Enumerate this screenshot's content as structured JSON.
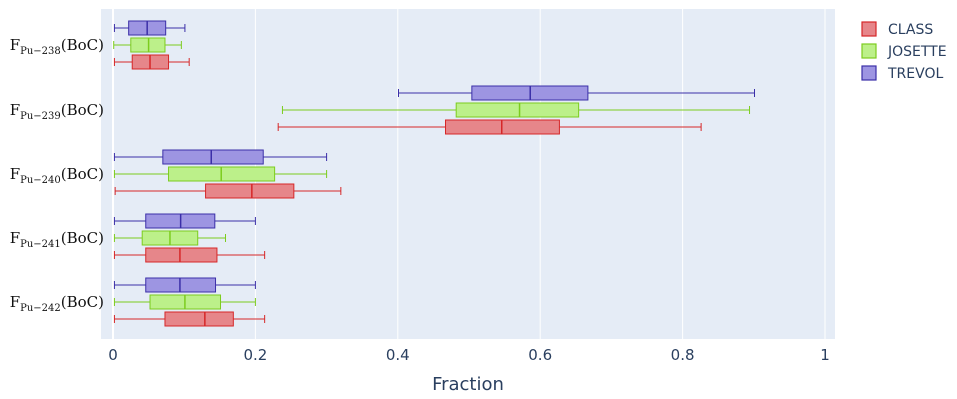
{
  "chart_data": {
    "type": "box",
    "orientation": "horizontal",
    "xlabel": "Fraction",
    "xlim": [
      0,
      1
    ],
    "xticks": [
      0,
      0.2,
      0.4,
      0.6,
      0.8,
      1
    ],
    "xtick_labels": [
      "0",
      "0.2",
      "0.4",
      "0.6",
      "0.8",
      "1"
    ],
    "grid": "vertical",
    "legend_position": "top-right",
    "categories": [
      {
        "base": "F",
        "sub": "Pu−238",
        "suffix": "(BoC)"
      },
      {
        "base": "F",
        "sub": "Pu−239",
        "suffix": "(BoC)"
      },
      {
        "base": "F",
        "sub": "Pu−240",
        "suffix": "(BoC)"
      },
      {
        "base": "F",
        "sub": "Pu−241",
        "suffix": "(BoC)"
      },
      {
        "base": "F",
        "sub": "Pu−242",
        "suffix": "(BoC)"
      }
    ],
    "series": [
      {
        "name": "CLASS",
        "color": "#d62728",
        "fill": "#e6868a",
        "boxes": [
          {
            "min": 0.002,
            "q1": 0.027,
            "median": 0.052,
            "q3": 0.078,
            "max": 0.107
          },
          {
            "min": 0.232,
            "q1": 0.467,
            "median": 0.546,
            "q3": 0.627,
            "max": 0.826
          },
          {
            "min": 0.003,
            "q1": 0.13,
            "median": 0.195,
            "q3": 0.254,
            "max": 0.32
          },
          {
            "min": 0.002,
            "q1": 0.046,
            "median": 0.094,
            "q3": 0.146,
            "max": 0.213
          },
          {
            "min": 0.002,
            "q1": 0.073,
            "median": 0.129,
            "q3": 0.169,
            "max": 0.213
          }
        ]
      },
      {
        "name": "JOSETTE",
        "color": "#7ccc1e",
        "fill": "#bcf08a",
        "boxes": [
          {
            "min": 0.001,
            "q1": 0.025,
            "median": 0.05,
            "q3": 0.073,
            "max": 0.096
          },
          {
            "min": 0.238,
            "q1": 0.482,
            "median": 0.571,
            "q3": 0.654,
            "max": 0.894
          },
          {
            "min": 0.002,
            "q1": 0.078,
            "median": 0.152,
            "q3": 0.227,
            "max": 0.3
          },
          {
            "min": 0.002,
            "q1": 0.041,
            "median": 0.08,
            "q3": 0.119,
            "max": 0.158
          },
          {
            "min": 0.002,
            "q1": 0.052,
            "median": 0.101,
            "q3": 0.151,
            "max": 0.2
          }
        ]
      },
      {
        "name": "TREVOL",
        "color": "#3b2fa8",
        "fill": "#9d95e2",
        "boxes": [
          {
            "min": 0.002,
            "q1": 0.022,
            "median": 0.048,
            "q3": 0.074,
            "max": 0.101
          },
          {
            "min": 0.401,
            "q1": 0.504,
            "median": 0.586,
            "q3": 0.667,
            "max": 0.901
          },
          {
            "min": 0.002,
            "q1": 0.07,
            "median": 0.138,
            "q3": 0.211,
            "max": 0.3
          },
          {
            "min": 0.002,
            "q1": 0.046,
            "median": 0.095,
            "q3": 0.143,
            "max": 0.2
          },
          {
            "min": 0.002,
            "q1": 0.046,
            "median": 0.094,
            "q3": 0.144,
            "max": 0.2
          }
        ]
      }
    ]
  }
}
